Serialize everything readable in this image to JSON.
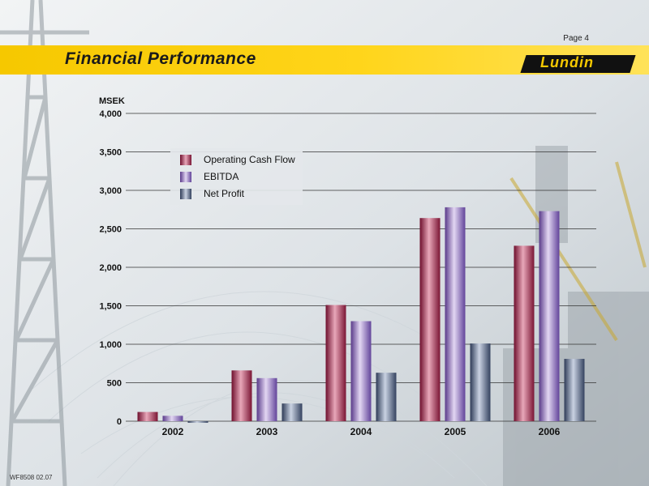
{
  "header": {
    "page": "Page 4",
    "title": "Financial Performance",
    "logo_text": "Lundin"
  },
  "footer": {
    "code": "WF8508 02.07"
  },
  "colors": {
    "operating_cash_flow": "#a8204a",
    "ebitda": "#8a67b6",
    "net_profit": "#4d5f80",
    "banner": "#f6c800"
  },
  "chart_data": {
    "type": "bar",
    "ylabel": "MSEK",
    "ylim": [
      0,
      4000
    ],
    "yticks": [
      0,
      500,
      1000,
      1500,
      2000,
      2500,
      3000,
      3500,
      4000
    ],
    "ytick_labels": [
      "0",
      "500",
      "1,000",
      "1,500",
      "2,000",
      "2,500",
      "3,000",
      "3,500",
      "4,000"
    ],
    "categories": [
      "2002",
      "2003",
      "2004",
      "2005",
      "2006"
    ],
    "series": [
      {
        "name": "Operating Cash Flow",
        "values": [
          120,
          660,
          1510,
          2640,
          2280
        ]
      },
      {
        "name": "EBITDA",
        "values": [
          70,
          560,
          1300,
          2780,
          2730
        ]
      },
      {
        "name": "Net Profit",
        "values": [
          -20,
          230,
          630,
          1010,
          810
        ]
      }
    ],
    "legend": "top-left",
    "grid": true
  }
}
